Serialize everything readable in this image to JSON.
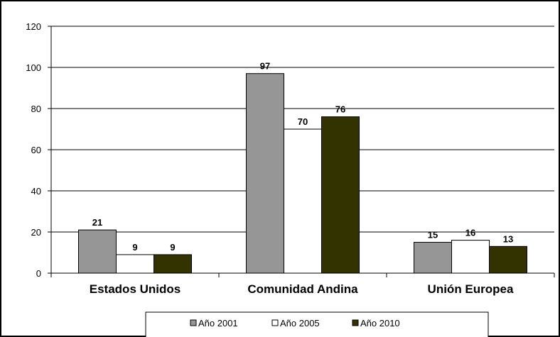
{
  "chart_data": {
    "type": "bar",
    "title": "",
    "xlabel": "",
    "ylabel": "",
    "ylim": [
      0,
      120
    ],
    "yticks": [
      "0",
      "20",
      "40",
      "60",
      "80",
      "100",
      "120"
    ],
    "grid": true,
    "legend_position": "bottom",
    "categories": [
      "Estados Unidos",
      "Comunidad Andina",
      "Unión Europea"
    ],
    "series": [
      {
        "name": "Año 2001",
        "color": "#969696",
        "values": [
          21,
          97,
          15
        ]
      },
      {
        "name": "Año 2005",
        "color": "#ffffff",
        "values": [
          9,
          70,
          16
        ]
      },
      {
        "name": "Año 2010",
        "color": "#333300",
        "values": [
          9,
          76,
          13
        ]
      }
    ]
  }
}
